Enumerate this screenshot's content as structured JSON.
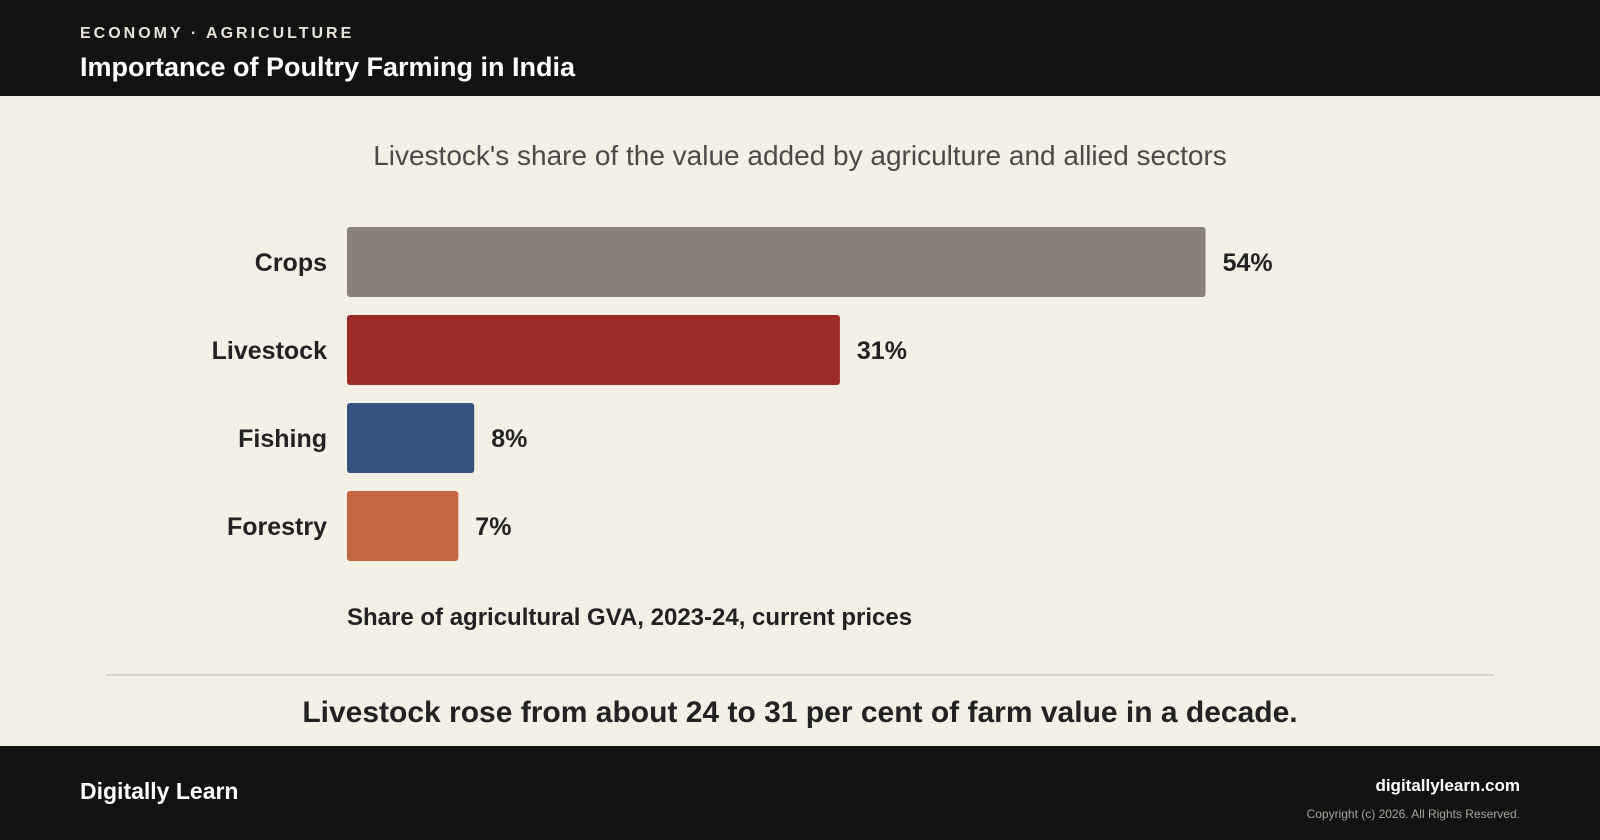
{
  "header": {
    "eyebrow": "ECONOMY · AGRICULTURE",
    "title": "Importance of Poultry Farming in India"
  },
  "chart_data": {
    "type": "bar",
    "orientation": "horizontal",
    "title": "Livestock's share of the value added by agriculture and allied sectors",
    "categories": [
      "Crops",
      "Livestock",
      "Fishing",
      "Forestry"
    ],
    "values": [
      54,
      31,
      8,
      7
    ],
    "value_labels": [
      "54%",
      "31%",
      "8%",
      "7%"
    ],
    "colors": [
      "#8a8178",
      "#9b2b26",
      "#34527d",
      "#c46441"
    ],
    "xlabel": "Share of agricultural GVA, 2023-24, current prices",
    "grid": false
  },
  "takeaway": "Livestock rose from about 24 to 31 per cent of farm value in a decade.",
  "footer": {
    "brand": "Digitally Learn",
    "site": "digitallylearn.com",
    "copyright": "Copyright (c) 2026. All Rights Reserved."
  }
}
